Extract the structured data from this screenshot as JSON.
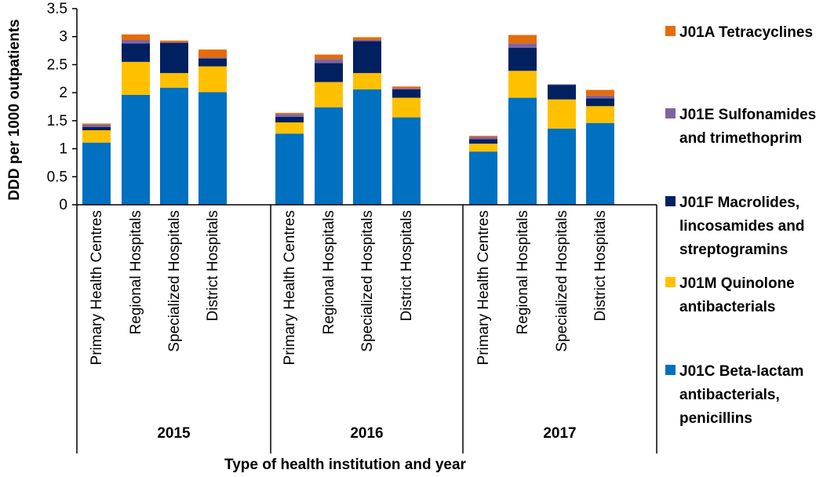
{
  "chart_data": {
    "type": "bar",
    "stacked": true,
    "title": "",
    "xlabel": "Type of health institution and year",
    "ylabel": "DDD per 1000 outpatients",
    "ylim": [
      0,
      3.5
    ],
    "yticks": [
      "0",
      "0.5",
      "1",
      "1.5",
      "2",
      "2.5",
      "3",
      "3.5"
    ],
    "groups": [
      {
        "year": "2015",
        "categories": [
          "Primary Health Centres",
          "Regional Hospitals",
          "Specialized Hospitals",
          "District Hospitals"
        ]
      },
      {
        "year": "2016",
        "categories": [
          "Primary Health Centres",
          "Regional Hospitals",
          "Specialized Hospitals",
          "District Hospitals"
        ]
      },
      {
        "year": "2017",
        "categories": [
          "Primary Health Centres",
          "Regional Hospitals",
          "Specialized Hospitals",
          "District Hospitals"
        ]
      }
    ],
    "series": [
      {
        "name": "J01C Beta-lactam antibacterials, penicillins",
        "legend_lines": [
          "J01C Beta-lactam",
          "antibacterials,",
          "penicillins"
        ],
        "color": "#0070C0",
        "values": [
          1.11,
          1.96,
          2.09,
          2.01,
          1.27,
          1.74,
          2.06,
          1.56,
          0.95,
          1.91,
          1.36,
          1.46
        ]
      },
      {
        "name": "J01M Quinolone antibacterials",
        "legend_lines": [
          "J01M Quinolone",
          "antibacterials"
        ],
        "color": "#FFC000",
        "values": [
          0.22,
          0.59,
          0.26,
          0.46,
          0.2,
          0.45,
          0.29,
          0.35,
          0.14,
          0.48,
          0.52,
          0.3
        ]
      },
      {
        "name": "J01F Macrolides, lincosamides and streptogramins",
        "legend_lines": [
          "J01F Macrolides,",
          "lincosamides and",
          "streptogramins"
        ],
        "color": "#002060",
        "values": [
          0.06,
          0.33,
          0.54,
          0.14,
          0.1,
          0.34,
          0.57,
          0.15,
          0.08,
          0.41,
          0.26,
          0.14
        ]
      },
      {
        "name": "J01E Sulfonamides and trimethoprim",
        "legend_lines": [
          "J01E Sulfonamides",
          "and trimethoprim"
        ],
        "color": "#8064A2",
        "values": [
          0.04,
          0.06,
          0.01,
          0.02,
          0.05,
          0.07,
          0.02,
          0.02,
          0.04,
          0.08,
          0.01,
          0.05
        ]
      },
      {
        "name": "J01A Tetracyclines",
        "legend_lines": [
          "J01A Tetracyclines"
        ],
        "color": "#E46C0A",
        "values": [
          0.02,
          0.1,
          0.03,
          0.14,
          0.02,
          0.08,
          0.05,
          0.03,
          0.02,
          0.15,
          0.0,
          0.1
        ]
      }
    ],
    "legend_order": [
      4,
      3,
      2,
      1,
      0
    ],
    "legend_position": "right",
    "grid": false
  }
}
